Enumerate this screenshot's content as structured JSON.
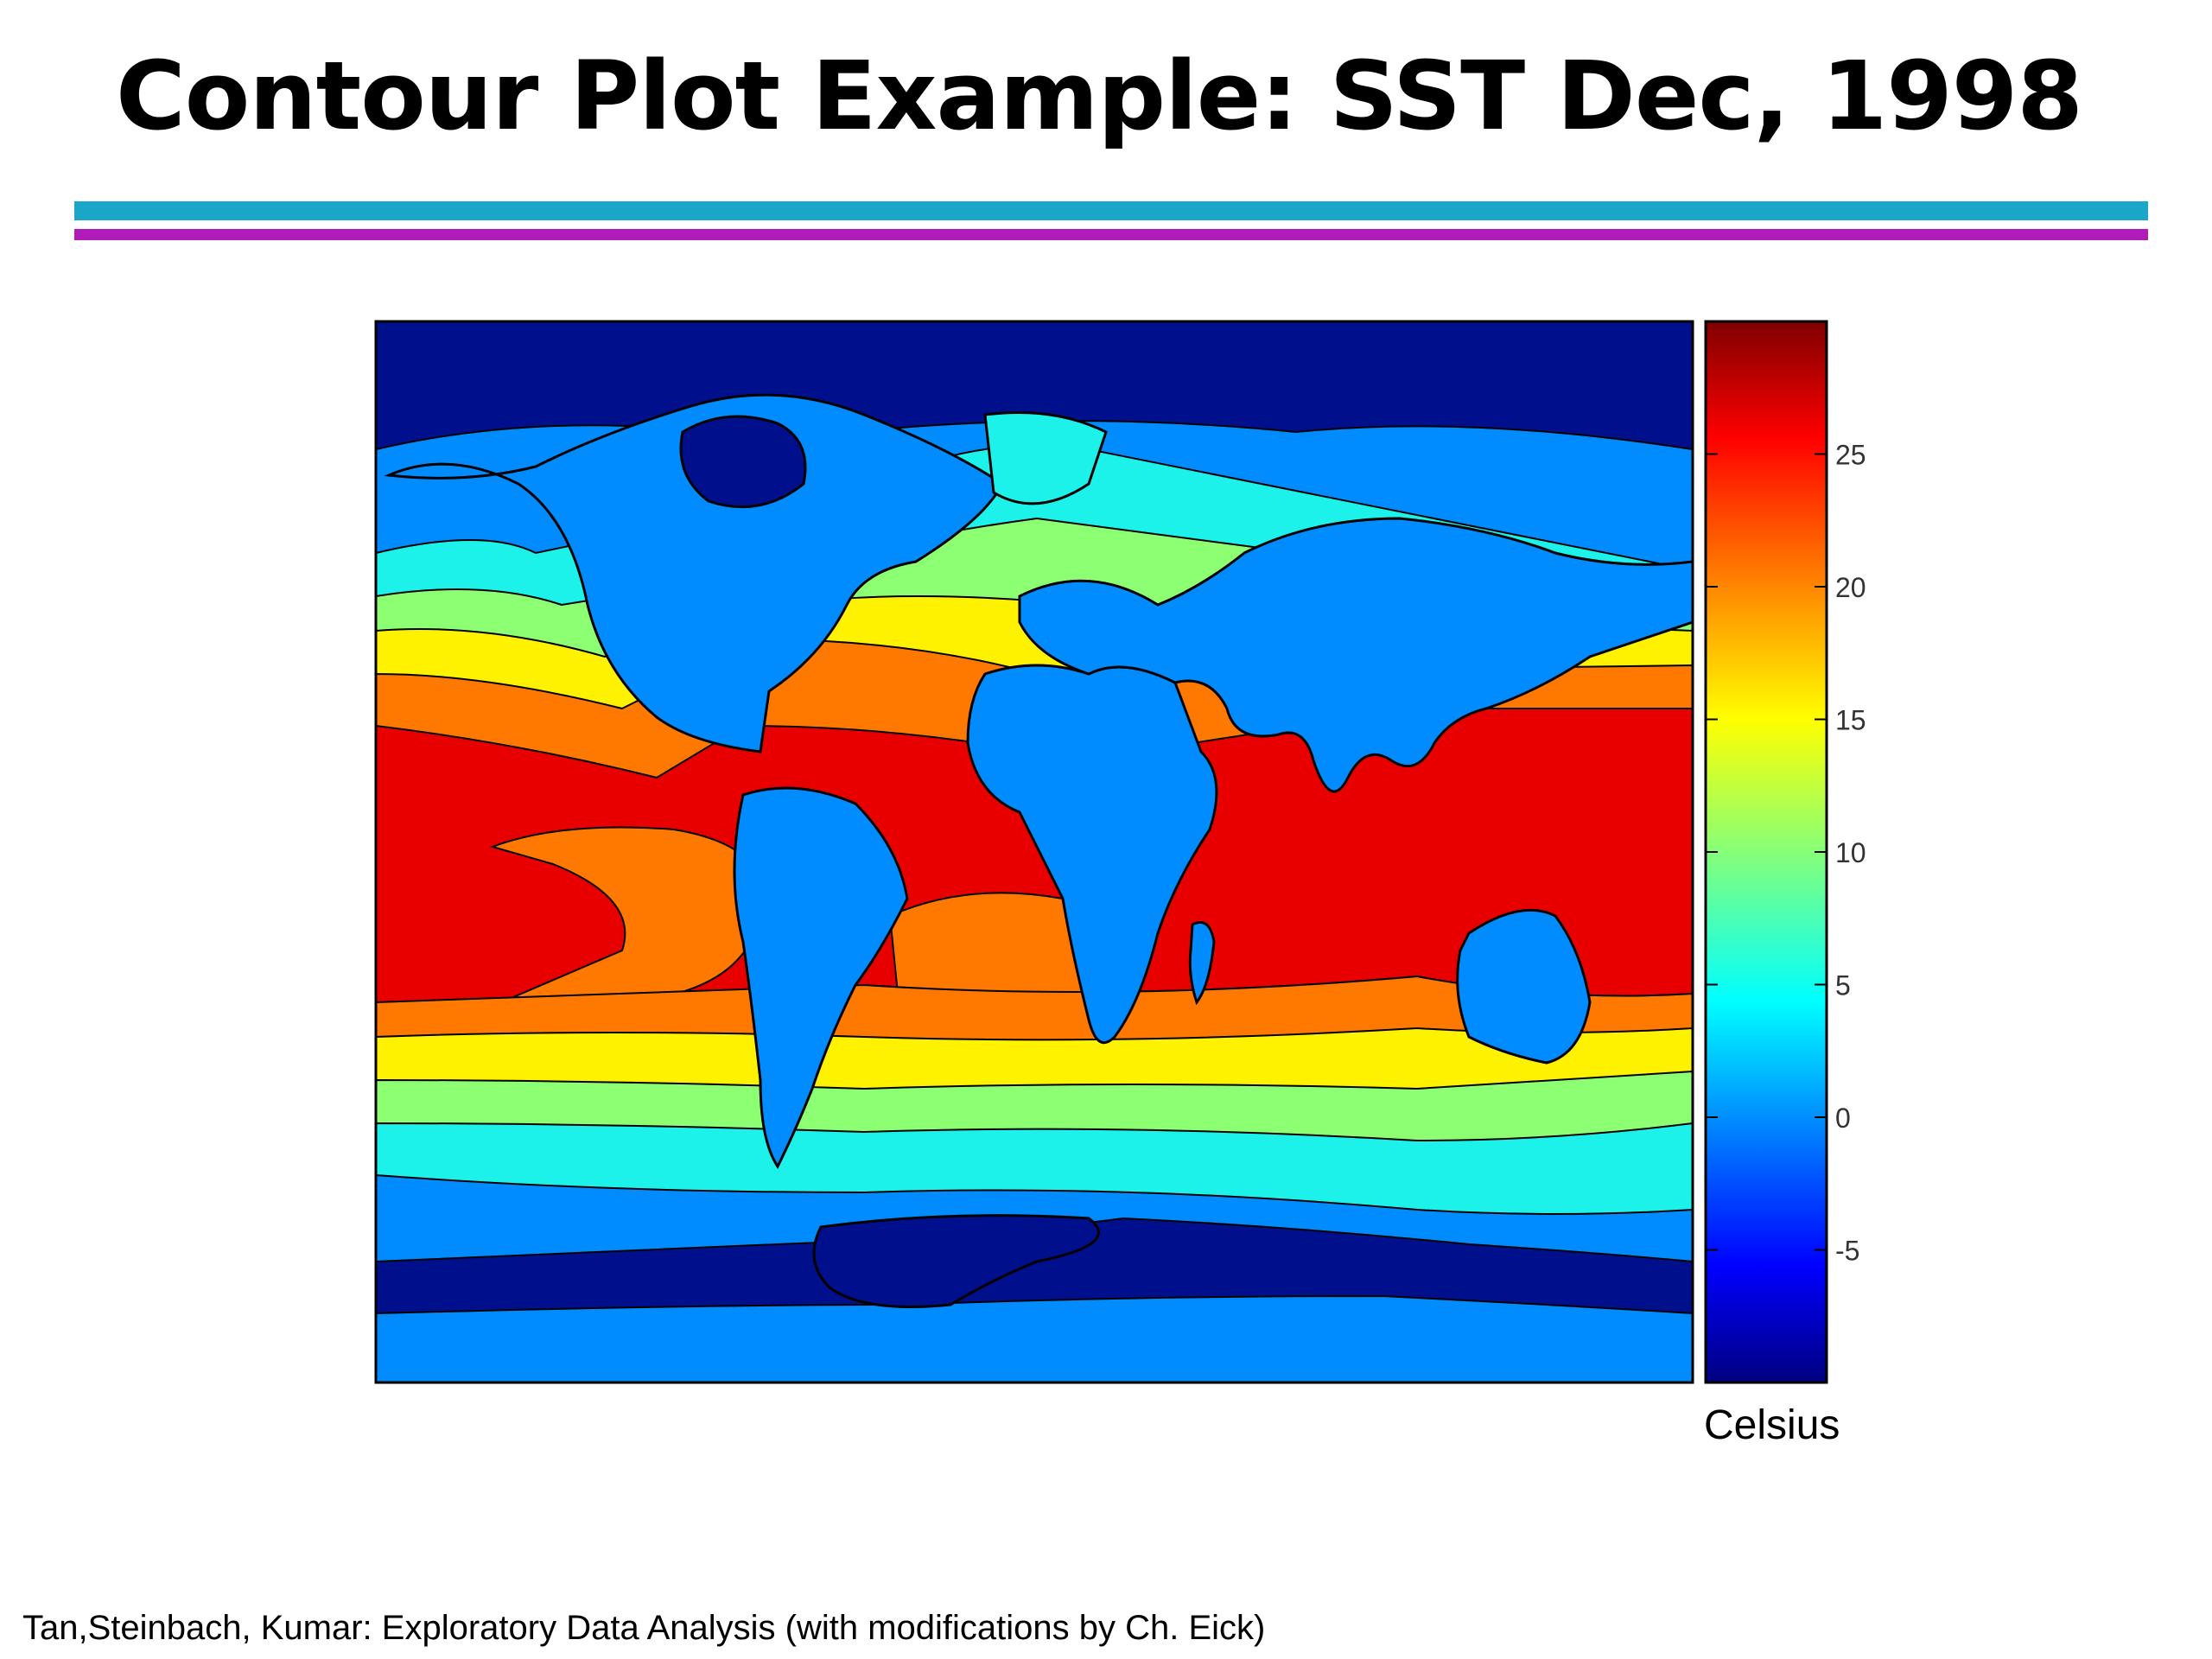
{
  "slide": {
    "title": "Contour Plot Example: SST Dec, 1998",
    "footer": "Tan,Steinbach, Kumar: Exploratory Data Analysis (with modifications by Ch. Eick)",
    "colors": {
      "rule_top": "#1aa6c8",
      "rule_bottom": "#b01cb8"
    }
  },
  "chart_data": {
    "type": "heatmap",
    "subtype": "filled-contour",
    "title": "",
    "xlabel": "",
    "ylabel": "",
    "colorbar": {
      "label": "Celsius",
      "range": [
        -10,
        30
      ],
      "ticks": [
        -5,
        0,
        5,
        10,
        15,
        20,
        25
      ],
      "colormap": "jet"
    },
    "contour_levels": [
      -10,
      -5,
      0,
      5,
      10,
      15,
      20,
      25,
      30
    ],
    "level_colors": [
      "#000f8c",
      "#008cff",
      "#1cf2ea",
      "#8cff73",
      "#fff200",
      "#ff7800",
      "#e80000"
    ],
    "land_color": "#008cff",
    "grid": false
  }
}
